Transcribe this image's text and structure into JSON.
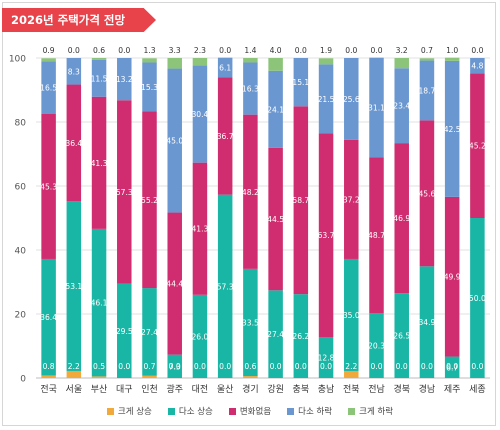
{
  "title": "2026년 주택가격 전망",
  "colors": {
    "big_up": "#f2a93b",
    "small_up": "#19b5a5",
    "neutral": "#cf2d6f",
    "small_down": "#6b97d1",
    "big_down": "#8cc47a"
  },
  "chart_data": {
    "type": "bar",
    "stacked": true,
    "categories": [
      "전국",
      "서울",
      "부산",
      "대구",
      "인천",
      "광주",
      "대전",
      "울산",
      "경기",
      "강원",
      "충북",
      "충남",
      "전북",
      "전남",
      "경북",
      "경남",
      "제주",
      "세종"
    ],
    "ylim": [
      0,
      100
    ],
    "yticks": [
      0,
      20,
      40,
      60,
      80,
      100
    ],
    "grid": true,
    "legend_position": "bottom",
    "series": [
      {
        "name": "크게 상승",
        "color": "#f2a93b",
        "values": [
          0.8,
          2.2,
          0.5,
          0.0,
          0.7,
          0.0,
          0.0,
          0.0,
          0.6,
          0.0,
          0.0,
          0.0,
          2.2,
          0.0,
          0.0,
          0.0,
          0.0,
          0.0
        ]
      },
      {
        "name": "다소 상승",
        "color": "#19b5a5",
        "values": [
          36.4,
          53.1,
          46.1,
          29.5,
          27.4,
          7.3,
          26.0,
          57.3,
          33.5,
          27.4,
          26.2,
          12.8,
          35.0,
          20.3,
          26.5,
          34.9,
          6.7,
          50.0
        ]
      },
      {
        "name": "변화없음",
        "color": "#cf2d6f",
        "values": [
          45.3,
          36.4,
          41.3,
          57.3,
          55.2,
          44.4,
          41.3,
          36.7,
          48.2,
          44.5,
          58.7,
          63.7,
          37.2,
          48.7,
          46.9,
          45.6,
          49.9,
          45.2
        ]
      },
      {
        "name": "다소 하락",
        "color": "#6b97d1",
        "values": [
          16.5,
          8.3,
          11.5,
          13.2,
          15.3,
          45.0,
          30.4,
          6.1,
          16.3,
          24.1,
          15.1,
          21.5,
          25.6,
          31.1,
          23.4,
          18.7,
          42.5,
          4.8
        ]
      },
      {
        "name": "크게 하락",
        "color": "#8cc47a",
        "values": [
          0.9,
          0.0,
          0.6,
          0.0,
          1.3,
          3.3,
          2.3,
          0.0,
          1.4,
          4.0,
          0.0,
          1.9,
          0.0,
          0.0,
          3.2,
          0.7,
          1.0,
          0.0
        ]
      }
    ]
  }
}
